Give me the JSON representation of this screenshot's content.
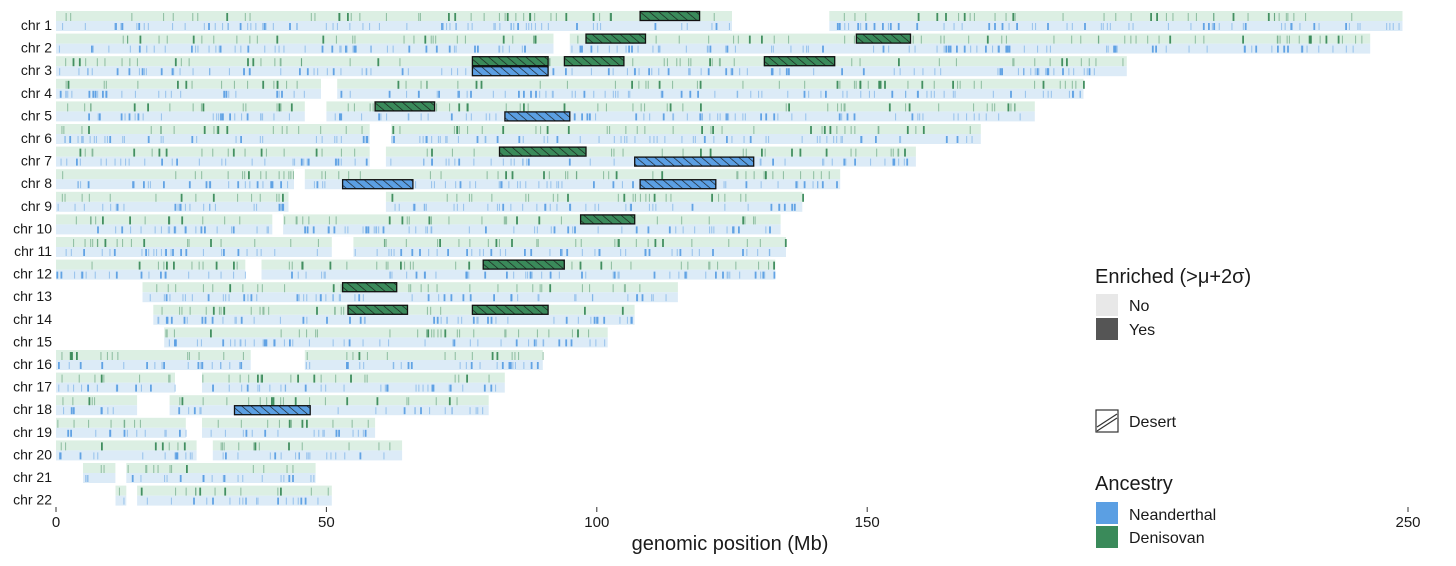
{
  "chart_data": {
    "type": "ideogram",
    "xlabel": "genomic position (Mb)",
    "ylabel": "",
    "xlim": [
      0,
      250
    ],
    "xticks": [
      0,
      50,
      100,
      150,
      250
    ],
    "chromosomes": [
      {
        "name": "chr 1",
        "segments": [
          [
            0,
            125
          ],
          [
            143,
            249
          ]
        ]
      },
      {
        "name": "chr 2",
        "segments": [
          [
            0,
            92
          ],
          [
            95,
            243
          ]
        ]
      },
      {
        "name": "chr 3",
        "segments": [
          [
            0,
            198
          ]
        ]
      },
      {
        "name": "chr 4",
        "segments": [
          [
            0,
            49
          ],
          [
            52,
            190
          ]
        ]
      },
      {
        "name": "chr 5",
        "segments": [
          [
            0,
            46
          ],
          [
            50,
            181
          ]
        ]
      },
      {
        "name": "chr 6",
        "segments": [
          [
            0,
            58
          ],
          [
            62,
            171
          ]
        ]
      },
      {
        "name": "chr 7",
        "segments": [
          [
            0,
            58
          ],
          [
            61,
            159
          ]
        ]
      },
      {
        "name": "chr 8",
        "segments": [
          [
            0,
            44
          ],
          [
            46,
            145
          ]
        ]
      },
      {
        "name": "chr 9",
        "segments": [
          [
            0,
            43
          ],
          [
            61,
            138
          ]
        ]
      },
      {
        "name": "chr 10",
        "segments": [
          [
            0,
            40
          ],
          [
            42,
            134
          ]
        ]
      },
      {
        "name": "chr 11",
        "segments": [
          [
            0,
            51
          ],
          [
            55,
            135
          ]
        ]
      },
      {
        "name": "chr 12",
        "segments": [
          [
            0,
            35
          ],
          [
            38,
            133
          ]
        ]
      },
      {
        "name": "chr 13",
        "segments": [
          [
            16,
            115
          ]
        ]
      },
      {
        "name": "chr 14",
        "segments": [
          [
            18,
            107
          ]
        ]
      },
      {
        "name": "chr 15",
        "segments": [
          [
            20,
            102
          ]
        ]
      },
      {
        "name": "chr 16",
        "segments": [
          [
            0,
            36
          ],
          [
            46,
            90
          ]
        ]
      },
      {
        "name": "chr 17",
        "segments": [
          [
            0,
            22
          ],
          [
            27,
            83
          ]
        ]
      },
      {
        "name": "chr 18",
        "segments": [
          [
            0,
            15
          ],
          [
            21,
            80
          ]
        ]
      },
      {
        "name": "chr 19",
        "segments": [
          [
            0,
            24
          ],
          [
            27,
            59
          ]
        ]
      },
      {
        "name": "chr 20",
        "segments": [
          [
            0,
            26
          ],
          [
            29,
            64
          ]
        ]
      },
      {
        "name": "chr 21",
        "segments": [
          [
            5,
            11
          ],
          [
            13,
            48
          ]
        ]
      },
      {
        "name": "chr 22",
        "segments": [
          [
            11,
            13
          ],
          [
            15,
            51
          ]
        ]
      }
    ],
    "deserts": [
      {
        "chr": "chr 1",
        "start": 108,
        "end": 119,
        "ancestry": "Denisovan"
      },
      {
        "chr": "chr 2",
        "start": 98,
        "end": 109,
        "ancestry": "Denisovan"
      },
      {
        "chr": "chr 2",
        "start": 148,
        "end": 158,
        "ancestry": "Denisovan"
      },
      {
        "chr": "chr 3",
        "start": 77,
        "end": 91,
        "ancestry": "Denisovan"
      },
      {
        "chr": "chr 3",
        "start": 94,
        "end": 105,
        "ancestry": "Denisovan"
      },
      {
        "chr": "chr 3",
        "start": 131,
        "end": 144,
        "ancestry": "Denisovan"
      },
      {
        "chr": "chr 3",
        "start": 77,
        "end": 91,
        "ancestry": "Neanderthal"
      },
      {
        "chr": "chr 5",
        "start": 59,
        "end": 70,
        "ancestry": "Denisovan"
      },
      {
        "chr": "chr 5",
        "start": 83,
        "end": 95,
        "ancestry": "Neanderthal"
      },
      {
        "chr": "chr 7",
        "start": 82,
        "end": 98,
        "ancestry": "Denisovan"
      },
      {
        "chr": "chr 7",
        "start": 107,
        "end": 129,
        "ancestry": "Neanderthal"
      },
      {
        "chr": "chr 8",
        "start": 53,
        "end": 66,
        "ancestry": "Neanderthal"
      },
      {
        "chr": "chr 8",
        "start": 108,
        "end": 122,
        "ancestry": "Neanderthal"
      },
      {
        "chr": "chr 10",
        "start": 97,
        "end": 107,
        "ancestry": "Denisovan"
      },
      {
        "chr": "chr 12",
        "start": 79,
        "end": 94,
        "ancestry": "Denisovan"
      },
      {
        "chr": "chr 13",
        "start": 53,
        "end": 63,
        "ancestry": "Denisovan"
      },
      {
        "chr": "chr 14",
        "start": 54,
        "end": 65,
        "ancestry": "Denisovan"
      },
      {
        "chr": "chr 14",
        "start": 77,
        "end": 91,
        "ancestry": "Denisovan"
      },
      {
        "chr": "chr 18",
        "start": 33,
        "end": 47,
        "ancestry": "Neanderthal"
      }
    ],
    "legend": {
      "enriched_title": "Enriched (>μ+2σ)",
      "enriched_items": [
        "No",
        "Yes"
      ],
      "desert_label": "Desert",
      "ancestry_title": "Ancestry",
      "ancestry_items": [
        {
          "name": "Neanderthal",
          "color": "#5b9fe3"
        },
        {
          "name": "Denisovan",
          "color": "#3a8a5a"
        }
      ]
    },
    "colors": {
      "neanderthal_light": "#dcebf7",
      "neanderthal_mark": "#5b9fe3",
      "denisovan_light": "#dcefe3",
      "denisovan_mark": "#3a8a5a",
      "enriched_no": "#e8e8e8",
      "enriched_yes": "#555555"
    }
  }
}
